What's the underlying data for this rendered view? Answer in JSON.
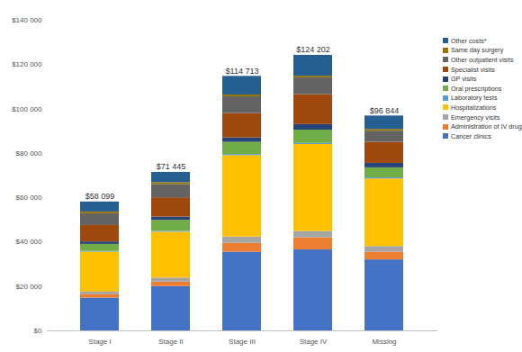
{
  "chart_data": {
    "type": "bar",
    "stacked": true,
    "legend": "right",
    "grid": false,
    "categories": [
      "Stage I",
      "Stage II",
      "Stage III",
      "Stage IV",
      "Missing"
    ],
    "series": [
      {
        "name": "Cancer clinics",
        "color": "#4472c4",
        "values": [
          14800,
          20000,
          35500,
          36500,
          32000
        ]
      },
      {
        "name": "Administration of IV drugs",
        "color": "#ed7d31",
        "values": [
          1500,
          2000,
          4000,
          5500,
          3500
        ]
      },
      {
        "name": "Emergency visits",
        "color": "#a5a5a5",
        "values": [
          1200,
          1800,
          2800,
          2800,
          2500
        ]
      },
      {
        "name": "Hospitalizations",
        "color": "#ffc000",
        "values": [
          18000,
          20700,
          36700,
          39200,
          30500
        ]
      },
      {
        "name": "Laboratory tests",
        "color": "#5b9bd5",
        "values": [
          300,
          400,
          500,
          500,
          500
        ]
      },
      {
        "name": "Oral prescriptions",
        "color": "#70ad47",
        "values": [
          3200,
          4900,
          5500,
          6000,
          4500
        ]
      },
      {
        "name": "GP visits",
        "color": "#264478",
        "values": [
          1100,
          1500,
          2000,
          2500,
          2000
        ]
      },
      {
        "name": "Specialist visits",
        "color": "#9e480e",
        "values": [
          7400,
          8700,
          11000,
          13500,
          9500
        ]
      },
      {
        "name": "Other outpatient visits",
        "color": "#636363",
        "values": [
          5300,
          6000,
          7500,
          7500,
          5000
        ]
      },
      {
        "name": "Same day surgery",
        "color": "#997300",
        "values": [
          800,
          800,
          800,
          800,
          800
        ]
      },
      {
        "name": "Other costs*",
        "color": "#255e91",
        "values": [
          4499,
          4645,
          8413,
          9402,
          6044
        ]
      }
    ],
    "totals": [
      58099,
      71445,
      114713,
      124202,
      96844
    ],
    "total_labels": [
      "$58 099",
      "$71 445",
      "$114 713",
      "$124 202",
      "$96 844"
    ],
    "ylim": [
      0,
      140000
    ],
    "yticks": [
      {
        "value": 0,
        "label": "$0"
      },
      {
        "value": 20000,
        "label": "$20 000"
      },
      {
        "value": 40000,
        "label": "$40 000"
      },
      {
        "value": 60000,
        "label": "$60 000"
      },
      {
        "value": 80000,
        "label": "$80 000"
      },
      {
        "value": 100000,
        "label": "$100 000"
      },
      {
        "value": 120000,
        "label": "$120 000"
      },
      {
        "value": 140000,
        "label": "$140 000"
      }
    ]
  }
}
